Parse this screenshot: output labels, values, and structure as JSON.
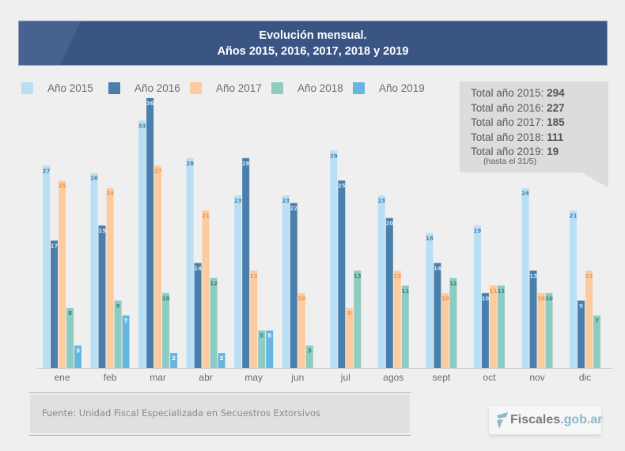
{
  "header": {
    "title_line1": "Evolución mensual.",
    "title_line2": "Años 2015, 2016, 2017, 2018 y 2019"
  },
  "legend": [
    {
      "label": "Año 2015",
      "color": "#b9dff4"
    },
    {
      "label": "Año 2016",
      "color": "#4a7fab"
    },
    {
      "label": "Año 2017",
      "color": "#fccba0"
    },
    {
      "label": "Año 2018",
      "color": "#8ecbc0"
    },
    {
      "label": "Año 2019",
      "color": "#67b6e0"
    }
  ],
  "totals": {
    "lines": [
      {
        "label": "Total año 2015: ",
        "value": "294"
      },
      {
        "label": "Total año 2016: ",
        "value": "227"
      },
      {
        "label": "Total año 2017: ",
        "value": "185"
      },
      {
        "label": "Total año 2018: ",
        "value": "111"
      },
      {
        "label": "Total año 2019: ",
        "value": "19"
      }
    ],
    "note": "(hasta el 31/5)"
  },
  "chart_data": {
    "type": "bar",
    "title": "Evolución mensual. Años 2015, 2016, 2017, 2018 y 2019",
    "xlabel": "",
    "ylabel": "",
    "ylim": [
      0,
      36
    ],
    "grid": false,
    "legend_position": "top-left",
    "categories": [
      "ene",
      "feb",
      "mar",
      "abr",
      "may",
      "jun",
      "jul",
      "agos",
      "sept",
      "oct",
      "nov",
      "dic"
    ],
    "series": [
      {
        "name": "Año 2015",
        "color": "#b9dff4",
        "label_color": "#4a7fab",
        "values": [
          27,
          26,
          33,
          28,
          23,
          23,
          29,
          23,
          18,
          19,
          24,
          21
        ]
      },
      {
        "name": "Año 2016",
        "color": "#4a7fab",
        "label_color": "#cfe3f2",
        "values": [
          17,
          19,
          36,
          14,
          28,
          22,
          25,
          20,
          14,
          10,
          13,
          9
        ]
      },
      {
        "name": "Año 2017",
        "color": "#fccba0",
        "label_color": "#f0954a",
        "values": [
          25,
          24,
          27,
          21,
          13,
          10,
          8,
          13,
          10,
          11,
          10,
          13
        ]
      },
      {
        "name": "Año 2018",
        "color": "#8ecbc0",
        "label_color": "#3f7f72",
        "values": [
          8,
          9,
          10,
          12,
          5,
          3,
          13,
          11,
          12,
          11,
          10,
          7
        ]
      },
      {
        "name": "Año 2019",
        "color": "#67b6e0",
        "label_color": "#ffffff",
        "values": [
          3,
          7,
          2,
          2,
          5,
          null,
          null,
          null,
          null,
          null,
          null,
          null
        ]
      }
    ]
  },
  "footer": {
    "source": "Fuente: Unidad Fiscal Especializada en Secuestros Extorsivos",
    "logo_part1": "Fiscales",
    "logo_part2": ".gob.ar"
  }
}
